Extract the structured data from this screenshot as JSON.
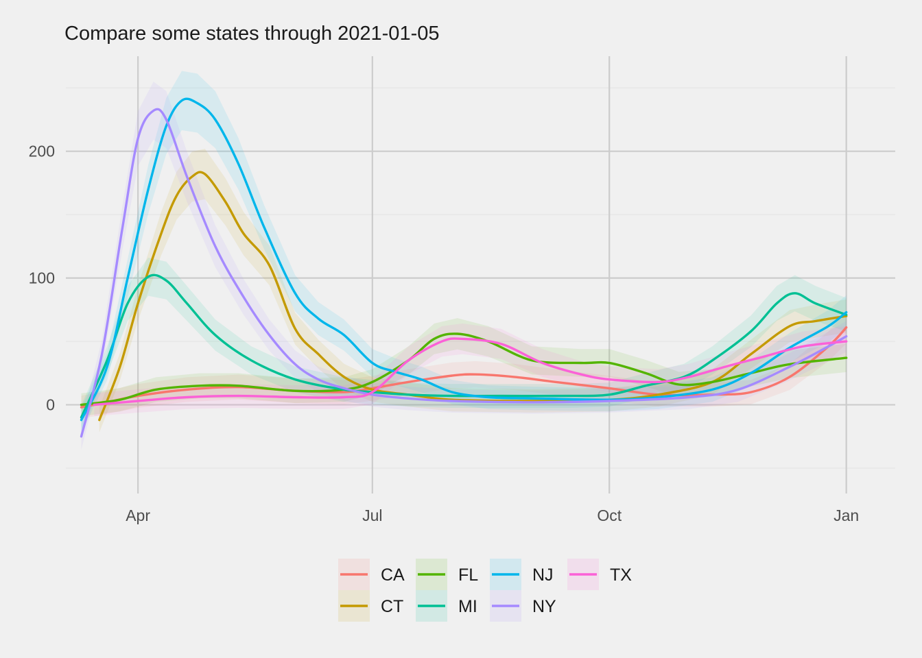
{
  "chart_data": {
    "type": "line",
    "title": "Compare some states through 2021-01-05",
    "xlabel": "",
    "ylabel": "",
    "x_ticks": [
      {
        "label": "Apr",
        "date": "2020-04-01"
      },
      {
        "label": "Jul",
        "date": "2020-07-01"
      },
      {
        "label": "Oct",
        "date": "2020-10-01"
      },
      {
        "label": "Jan",
        "date": "2021-01-01"
      }
    ],
    "y_ticks": [
      0,
      100,
      200
    ],
    "xlim": [
      "2020-03-04",
      "2021-01-20"
    ],
    "ylim": [
      -70,
      275
    ],
    "grid": true,
    "legend_position": "bottom",
    "series": [
      {
        "name": "CA",
        "color": "#F8766D",
        "points": [
          [
            "2020-03-10",
            -2
          ],
          [
            "2020-03-20",
            2
          ],
          [
            "2020-04-01",
            7
          ],
          [
            "2020-04-20",
            12
          ],
          [
            "2020-05-10",
            14
          ],
          [
            "2020-06-01",
            11
          ],
          [
            "2020-06-20",
            10
          ],
          [
            "2020-07-01",
            13
          ],
          [
            "2020-07-15",
            18
          ],
          [
            "2020-08-01",
            23
          ],
          [
            "2020-08-10",
            24
          ],
          [
            "2020-08-25",
            22
          ],
          [
            "2020-09-10",
            18
          ],
          [
            "2020-10-01",
            13
          ],
          [
            "2020-10-20",
            8
          ],
          [
            "2020-11-10",
            8
          ],
          [
            "2020-11-25",
            10
          ],
          [
            "2020-12-10",
            22
          ],
          [
            "2020-12-25",
            46
          ],
          [
            "2021-01-01",
            61
          ]
        ]
      },
      {
        "name": "CT",
        "color": "#C49A00",
        "points": [
          [
            "2020-03-17",
            -12
          ],
          [
            "2020-03-25",
            30
          ],
          [
            "2020-04-01",
            80
          ],
          [
            "2020-04-10",
            135
          ],
          [
            "2020-04-16",
            165
          ],
          [
            "2020-04-22",
            180
          ],
          [
            "2020-04-27",
            182
          ],
          [
            "2020-05-05",
            160
          ],
          [
            "2020-05-12",
            135
          ],
          [
            "2020-05-22",
            110
          ],
          [
            "2020-06-01",
            60
          ],
          [
            "2020-06-10",
            40
          ],
          [
            "2020-06-20",
            22
          ],
          [
            "2020-07-01",
            12
          ],
          [
            "2020-07-15",
            8
          ],
          [
            "2020-08-01",
            4
          ],
          [
            "2020-09-01",
            3
          ],
          [
            "2020-10-01",
            4
          ],
          [
            "2020-10-20",
            8
          ],
          [
            "2020-11-10",
            18
          ],
          [
            "2020-11-25",
            40
          ],
          [
            "2020-12-10",
            62
          ],
          [
            "2020-12-20",
            66
          ],
          [
            "2021-01-01",
            70
          ]
        ]
      },
      {
        "name": "FL",
        "color": "#53B400",
        "points": [
          [
            "2020-03-10",
            0
          ],
          [
            "2020-03-25",
            4
          ],
          [
            "2020-04-08",
            12
          ],
          [
            "2020-04-25",
            15
          ],
          [
            "2020-05-10",
            15
          ],
          [
            "2020-06-01",
            11
          ],
          [
            "2020-06-20",
            12
          ],
          [
            "2020-07-01",
            18
          ],
          [
            "2020-07-15",
            35
          ],
          [
            "2020-07-25",
            52
          ],
          [
            "2020-08-03",
            56
          ],
          [
            "2020-08-15",
            50
          ],
          [
            "2020-09-01",
            35
          ],
          [
            "2020-09-20",
            33
          ],
          [
            "2020-10-01",
            33
          ],
          [
            "2020-10-15",
            25
          ],
          [
            "2020-10-28",
            16
          ],
          [
            "2020-11-10",
            18
          ],
          [
            "2020-11-25",
            25
          ],
          [
            "2020-12-10",
            32
          ],
          [
            "2021-01-01",
            37
          ]
        ]
      },
      {
        "name": "MI",
        "color": "#00C094",
        "points": [
          [
            "2020-03-10",
            -10
          ],
          [
            "2020-03-20",
            35
          ],
          [
            "2020-03-28",
            80
          ],
          [
            "2020-04-05",
            101
          ],
          [
            "2020-04-12",
            98
          ],
          [
            "2020-04-20",
            80
          ],
          [
            "2020-05-01",
            55
          ],
          [
            "2020-05-15",
            35
          ],
          [
            "2020-06-01",
            20
          ],
          [
            "2020-06-20",
            12
          ],
          [
            "2020-07-01",
            10
          ],
          [
            "2020-07-15",
            8
          ],
          [
            "2020-08-01",
            7
          ],
          [
            "2020-08-20",
            7
          ],
          [
            "2020-09-15",
            7
          ],
          [
            "2020-10-01",
            8
          ],
          [
            "2020-10-15",
            15
          ],
          [
            "2020-10-30",
            22
          ],
          [
            "2020-11-10",
            35
          ],
          [
            "2020-11-25",
            58
          ],
          [
            "2020-12-05",
            80
          ],
          [
            "2020-12-12",
            88
          ],
          [
            "2020-12-20",
            80
          ],
          [
            "2021-01-01",
            71
          ]
        ]
      },
      {
        "name": "NJ",
        "color": "#00B6EB",
        "points": [
          [
            "2020-03-10",
            -12
          ],
          [
            "2020-03-20",
            30
          ],
          [
            "2020-03-28",
            100
          ],
          [
            "2020-04-05",
            170
          ],
          [
            "2020-04-12",
            220
          ],
          [
            "2020-04-18",
            240
          ],
          [
            "2020-04-24",
            238
          ],
          [
            "2020-05-01",
            225
          ],
          [
            "2020-05-10",
            190
          ],
          [
            "2020-05-20",
            140
          ],
          [
            "2020-06-01",
            88
          ],
          [
            "2020-06-10",
            68
          ],
          [
            "2020-06-20",
            55
          ],
          [
            "2020-07-01",
            33
          ],
          [
            "2020-07-10",
            26
          ],
          [
            "2020-07-20",
            20
          ],
          [
            "2020-08-01",
            10
          ],
          [
            "2020-08-15",
            6
          ],
          [
            "2020-09-01",
            5
          ],
          [
            "2020-10-01",
            4
          ],
          [
            "2020-10-20",
            6
          ],
          [
            "2020-11-10",
            12
          ],
          [
            "2020-11-25",
            25
          ],
          [
            "2020-12-10",
            45
          ],
          [
            "2020-12-25",
            62
          ],
          [
            "2021-01-01",
            73
          ]
        ]
      },
      {
        "name": "NY",
        "color": "#A58AFF",
        "points": [
          [
            "2020-03-10",
            -25
          ],
          [
            "2020-03-18",
            40
          ],
          [
            "2020-03-26",
            140
          ],
          [
            "2020-04-01",
            210
          ],
          [
            "2020-04-07",
            232
          ],
          [
            "2020-04-12",
            225
          ],
          [
            "2020-04-20",
            180
          ],
          [
            "2020-05-01",
            125
          ],
          [
            "2020-05-12",
            85
          ],
          [
            "2020-05-22",
            55
          ],
          [
            "2020-06-01",
            32
          ],
          [
            "2020-06-10",
            20
          ],
          [
            "2020-06-20",
            13
          ],
          [
            "2020-07-01",
            8
          ],
          [
            "2020-07-15",
            5
          ],
          [
            "2020-08-01",
            3
          ],
          [
            "2020-09-01",
            2
          ],
          [
            "2020-10-01",
            3
          ],
          [
            "2020-11-01",
            6
          ],
          [
            "2020-11-20",
            12
          ],
          [
            "2020-12-10",
            30
          ],
          [
            "2020-12-25",
            46
          ],
          [
            "2021-01-01",
            54
          ]
        ]
      },
      {
        "name": "TX",
        "color": "#FB61D7",
        "points": [
          [
            "2020-03-15",
            0
          ],
          [
            "2020-04-01",
            3
          ],
          [
            "2020-04-20",
            6
          ],
          [
            "2020-05-10",
            7
          ],
          [
            "2020-06-01",
            6
          ],
          [
            "2020-06-20",
            6
          ],
          [
            "2020-07-01",
            10
          ],
          [
            "2020-07-15",
            35
          ],
          [
            "2020-07-28",
            50
          ],
          [
            "2020-08-05",
            52
          ],
          [
            "2020-08-20",
            48
          ],
          [
            "2020-09-05",
            33
          ],
          [
            "2020-09-20",
            24
          ],
          [
            "2020-10-01",
            20
          ],
          [
            "2020-10-20",
            18
          ],
          [
            "2020-11-01",
            22
          ],
          [
            "2020-11-15",
            30
          ],
          [
            "2020-11-30",
            38
          ],
          [
            "2020-12-15",
            46
          ],
          [
            "2021-01-01",
            50
          ]
        ]
      }
    ]
  }
}
